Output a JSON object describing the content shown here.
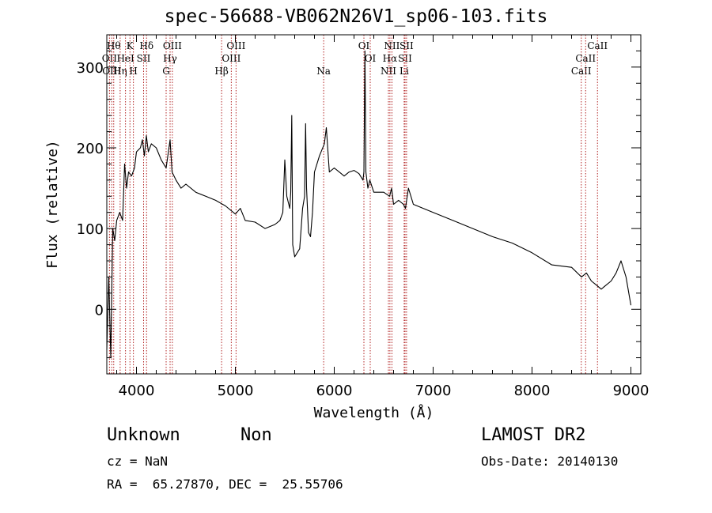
{
  "chart_data": {
    "type": "line",
    "title": "spec-56688-VB062N26V1_sp06-103.fits",
    "xlabel": "Wavelength (Å)",
    "ylabel": "Flux (relative)",
    "xlim": [
      3700,
      9100
    ],
    "ylim": [
      -80,
      340
    ],
    "x_ticks": [
      4000,
      5000,
      6000,
      7000,
      8000,
      9000
    ],
    "y_ticks": [
      0,
      100,
      200,
      300
    ],
    "grid": false,
    "line_color": "#000000",
    "marker_line_color": "#b22222",
    "series": [
      {
        "x": [
          3700,
          3720,
          3740,
          3760,
          3780,
          3800,
          3830,
          3860,
          3880,
          3900,
          3920,
          3950,
          3980,
          4000,
          4040,
          4060,
          4080,
          4100,
          4120,
          4150,
          4200,
          4250,
          4300,
          4340,
          4360,
          4400,
          4450,
          4500,
          4600,
          4700,
          4800,
          4900,
          5000,
          5050,
          5100,
          5200,
          5300,
          5400,
          5450,
          5480,
          5500,
          5520,
          5550,
          5560,
          5570,
          5580,
          5600,
          5650,
          5680,
          5700,
          5710,
          5720,
          5740,
          5760,
          5780,
          5800,
          5850,
          5900,
          5920,
          5950,
          6000,
          6050,
          6100,
          6150,
          6200,
          6250,
          6290,
          6300,
          6310,
          6320,
          6340,
          6360,
          6400,
          6500,
          6560,
          6580,
          6600,
          6650,
          6700,
          6720,
          6750,
          6800,
          6900,
          7000,
          7200,
          7400,
          7600,
          7800,
          8000,
          8200,
          8400,
          8500,
          8550,
          8600,
          8650,
          8700,
          8750,
          8800,
          8850,
          8900,
          8950,
          9000
        ],
        "y": [
          -50,
          40,
          -60,
          100,
          85,
          110,
          120,
          110,
          180,
          150,
          170,
          165,
          175,
          195,
          200,
          210,
          190,
          215,
          195,
          205,
          200,
          185,
          175,
          210,
          170,
          160,
          150,
          155,
          145,
          140,
          135,
          128,
          118,
          125,
          110,
          108,
          100,
          105,
          110,
          120,
          185,
          140,
          125,
          145,
          240,
          80,
          65,
          75,
          125,
          140,
          230,
          150,
          95,
          90,
          120,
          170,
          190,
          205,
          225,
          170,
          175,
          170,
          165,
          170,
          172,
          168,
          160,
          170,
          320,
          170,
          150,
          160,
          145,
          145,
          140,
          150,
          130,
          135,
          130,
          125,
          150,
          130,
          125,
          120,
          110,
          100,
          90,
          82,
          70,
          55,
          52,
          40,
          45,
          35,
          30,
          25,
          30,
          35,
          45,
          60,
          40,
          5
        ]
      }
    ],
    "line_markers": [
      {
        "x": 3727,
        "label": "OII",
        "row": 1
      },
      {
        "x": 3750,
        "label": "OIII",
        "row": 2
      },
      {
        "x": 3770,
        "label": "Hθ",
        "row": 0
      },
      {
        "x": 3835,
        "label": "Hη",
        "row": 2
      },
      {
        "x": 3889,
        "label": "HeI",
        "row": 1
      },
      {
        "x": 3934,
        "label": "K",
        "row": 0
      },
      {
        "x": 3969,
        "label": "H",
        "row": 2
      },
      {
        "x": 4072,
        "label": "SII",
        "row": 1
      },
      {
        "x": 4102,
        "label": "Hδ",
        "row": 0
      },
      {
        "x": 4300,
        "label": "G",
        "row": 2
      },
      {
        "x": 4340,
        "label": "Hγ",
        "row": 1
      },
      {
        "x": 4363,
        "label": "OIII",
        "row": 0
      },
      {
        "x": 4861,
        "label": "Hβ",
        "row": 2
      },
      {
        "x": 4959,
        "label": "OIII",
        "row": 1
      },
      {
        "x": 5007,
        "label": "OIII",
        "row": 0
      },
      {
        "x": 5893,
        "label": "Na",
        "row": 2
      },
      {
        "x": 6300,
        "label": "OI",
        "row": 0
      },
      {
        "x": 6364,
        "label": "OI",
        "row": 1
      },
      {
        "x": 6548,
        "label": "NII",
        "row": 2
      },
      {
        "x": 6563,
        "label": "Hα",
        "row": 1
      },
      {
        "x": 6583,
        "label": "NII",
        "row": 0
      },
      {
        "x": 6707,
        "label": "Li",
        "row": 2
      },
      {
        "x": 6716,
        "label": "SII",
        "row": 1
      },
      {
        "x": 6731,
        "label": "SII",
        "row": 0
      },
      {
        "x": 8498,
        "label": "CaII",
        "row": 2
      },
      {
        "x": 8542,
        "label": "CaII",
        "row": 1
      },
      {
        "x": 8662,
        "label": "CaII",
        "row": 0
      }
    ]
  },
  "footer": {
    "object_class": "Unknown",
    "subclass": "Non",
    "survey": "LAMOST DR2",
    "redshift": "cz = NaN",
    "obs_date": "Obs-Date: 20140130",
    "coords": "RA =  65.27870, DEC =  25.55706"
  }
}
